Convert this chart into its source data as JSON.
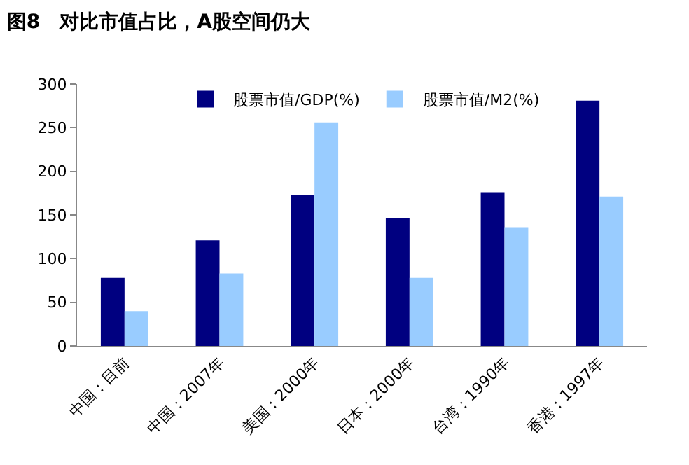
{
  "chart_data": {
    "type": "bar",
    "title": "图8　对比市值占比，A股空间仍大",
    "categories": [
      "中国：目前",
      "中国：2007年",
      "美国：2000年",
      "日本：2000年",
      "台湾：1990年",
      "香港：1997年"
    ],
    "series": [
      {
        "name": "股票市值/GDP(%)",
        "color": "#000080",
        "values": [
          78,
          121,
          173,
          146,
          176,
          281
        ]
      },
      {
        "name": "股票市值/M2(%)",
        "color": "#99ccff",
        "values": [
          40,
          83,
          256,
          78,
          136,
          171
        ]
      }
    ],
    "ylim": [
      0,
      300
    ],
    "yticks": [
      0,
      50,
      100,
      150,
      200,
      250,
      300
    ],
    "grid": false,
    "legend": "top"
  }
}
